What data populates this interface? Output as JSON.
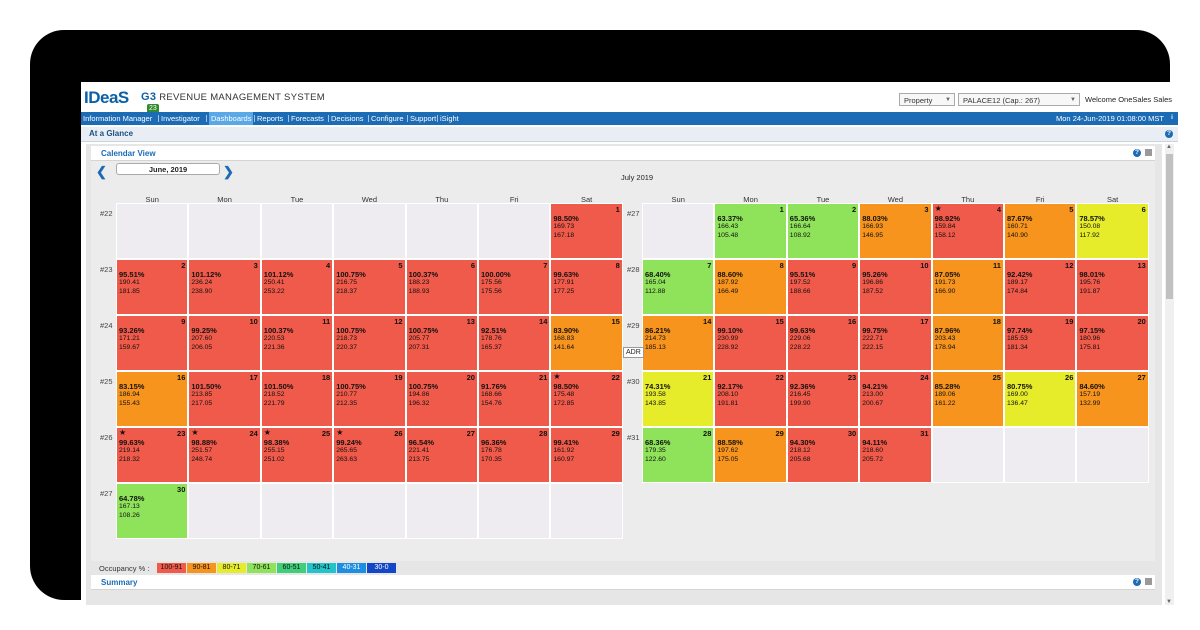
{
  "app": {
    "logo": "IDeaS",
    "product_short": "G3",
    "product_name": "REVENUE MANAGEMENT SYSTEM",
    "badge": "23",
    "property_select": "Property",
    "property_value": "PALACE12 (Cap.: 267)",
    "welcome": "Welcome OneSales Sales"
  },
  "nav": {
    "items": [
      "Information Manager",
      "Investigator",
      "Dashboards",
      "Reports",
      "Forecasts",
      "Decisions",
      "Configure",
      "Support",
      "iSight"
    ],
    "active": "Dashboards",
    "datetime": "Mon 24-Jun-2019 01:08:00 MST"
  },
  "page": {
    "section": "At a Glance",
    "panel_title": "Calendar View",
    "summary_title": "Summary",
    "help": "?"
  },
  "calendar": {
    "prev_arrow": "❮",
    "next_arrow": "❯",
    "tooltip": "ADR",
    "dow": [
      "Sun",
      "Mon",
      "Tue",
      "Wed",
      "Thu",
      "Fri",
      "Sat"
    ],
    "left": {
      "title": "June, 2019",
      "weeks": [
        "#22",
        "#23",
        "#24",
        "#25",
        "#26",
        "#27"
      ],
      "start_offset": 6,
      "days": [
        {
          "d": "1",
          "o": "98.50%",
          "v1": "169.73",
          "v2": "167.18",
          "c": "#f05a4a"
        },
        {
          "d": "2",
          "o": "95.51%",
          "v1": "190.41",
          "v2": "181.85",
          "c": "#f05a4a"
        },
        {
          "d": "3",
          "o": "101.12%",
          "v1": "236.24",
          "v2": "238.90",
          "c": "#f05a4a"
        },
        {
          "d": "4",
          "o": "101.12%",
          "v1": "250.41",
          "v2": "253.22",
          "c": "#f05a4a"
        },
        {
          "d": "5",
          "o": "100.75%",
          "v1": "216.75",
          "v2": "218.37",
          "c": "#f05a4a"
        },
        {
          "d": "6",
          "o": "100.37%",
          "v1": "188.23",
          "v2": "188.93",
          "c": "#f05a4a"
        },
        {
          "d": "7",
          "o": "100.00%",
          "v1": "175.56",
          "v2": "175.56",
          "c": "#f05a4a"
        },
        {
          "d": "8",
          "o": "99.63%",
          "v1": "177.91",
          "v2": "177.25",
          "c": "#f05a4a"
        },
        {
          "d": "9",
          "o": "93.26%",
          "v1": "171.21",
          "v2": "159.67",
          "c": "#f05a4a"
        },
        {
          "d": "10",
          "o": "99.25%",
          "v1": "207.60",
          "v2": "206.05",
          "c": "#f05a4a"
        },
        {
          "d": "11",
          "o": "100.37%",
          "v1": "220.53",
          "v2": "221.36",
          "c": "#f05a4a"
        },
        {
          "d": "12",
          "o": "100.75%",
          "v1": "218.73",
          "v2": "220.37",
          "c": "#f05a4a"
        },
        {
          "d": "13",
          "o": "100.75%",
          "v1": "205.77",
          "v2": "207.31",
          "c": "#f05a4a"
        },
        {
          "d": "14",
          "o": "92.51%",
          "v1": "178.76",
          "v2": "165.37",
          "c": "#f05a4a"
        },
        {
          "d": "15",
          "o": "83.90%",
          "v1": "168.83",
          "v2": "141.64",
          "c": "#f7941d"
        },
        {
          "d": "16",
          "o": "83.15%",
          "v1": "186.94",
          "v2": "155.43",
          "c": "#f7941d"
        },
        {
          "d": "17",
          "o": "101.50%",
          "v1": "213.85",
          "v2": "217.05",
          "c": "#f05a4a"
        },
        {
          "d": "18",
          "o": "101.50%",
          "v1": "218.52",
          "v2": "221.79",
          "c": "#f05a4a"
        },
        {
          "d": "19",
          "o": "100.75%",
          "v1": "210.77",
          "v2": "212.35",
          "c": "#f05a4a"
        },
        {
          "d": "20",
          "o": "100.75%",
          "v1": "194.86",
          "v2": "196.32",
          "c": "#f05a4a"
        },
        {
          "d": "21",
          "o": "91.76%",
          "v1": "168.66",
          "v2": "154.76",
          "c": "#f05a4a"
        },
        {
          "d": "22",
          "o": "98.50%",
          "v1": "175.48",
          "v2": "172.85",
          "c": "#f05a4a",
          "star": true
        },
        {
          "d": "23",
          "o": "99.63%",
          "v1": "219.14",
          "v2": "218.32",
          "c": "#f05a4a",
          "star": true
        },
        {
          "d": "24",
          "o": "98.88%",
          "v1": "251.57",
          "v2": "248.74",
          "c": "#f05a4a",
          "star": true
        },
        {
          "d": "25",
          "o": "98.38%",
          "v1": "255.15",
          "v2": "251.02",
          "c": "#f05a4a",
          "star": true
        },
        {
          "d": "26",
          "o": "99.24%",
          "v1": "265.65",
          "v2": "263.63",
          "c": "#f05a4a",
          "star": true
        },
        {
          "d": "27",
          "o": "96.54%",
          "v1": "221.41",
          "v2": "213.75",
          "c": "#f05a4a"
        },
        {
          "d": "28",
          "o": "96.36%",
          "v1": "176.78",
          "v2": "170.35",
          "c": "#f05a4a"
        },
        {
          "d": "29",
          "o": "99.41%",
          "v1": "161.92",
          "v2": "160.97",
          "c": "#f05a4a"
        },
        {
          "d": "30",
          "o": "64.78%",
          "v1": "167.13",
          "v2": "108.26",
          "c": "#8fe35a"
        }
      ]
    },
    "right": {
      "title": "July 2019",
      "weeks": [
        "#27",
        "#28",
        "#29",
        "#30",
        "#31"
      ],
      "start_offset": 1,
      "days": [
        {
          "d": "1",
          "o": "63.37%",
          "v1": "166.43",
          "v2": "105.48",
          "c": "#8fe35a"
        },
        {
          "d": "2",
          "o": "65.36%",
          "v1": "166.64",
          "v2": "108.92",
          "c": "#8fe35a"
        },
        {
          "d": "3",
          "o": "88.03%",
          "v1": "166.93",
          "v2": "146.95",
          "c": "#f7941d"
        },
        {
          "d": "4",
          "o": "98.92%",
          "v1": "159.84",
          "v2": "158.12",
          "c": "#f05a4a",
          "star": true
        },
        {
          "d": "5",
          "o": "87.67%",
          "v1": "160.71",
          "v2": "140.90",
          "c": "#f7941d"
        },
        {
          "d": "6",
          "o": "78.57%",
          "v1": "150.08",
          "v2": "117.92",
          "c": "#e6ec2a"
        },
        {
          "d": "7",
          "o": "68.40%",
          "v1": "165.04",
          "v2": "112.88",
          "c": "#8fe35a"
        },
        {
          "d": "8",
          "o": "88.60%",
          "v1": "187.92",
          "v2": "166.49",
          "c": "#f7941d"
        },
        {
          "d": "9",
          "o": "95.51%",
          "v1": "197.52",
          "v2": "188.66",
          "c": "#f05a4a"
        },
        {
          "d": "10",
          "o": "95.26%",
          "v1": "196.86",
          "v2": "187.52",
          "c": "#f05a4a"
        },
        {
          "d": "11",
          "o": "87.05%",
          "v1": "191.73",
          "v2": "166.90",
          "c": "#f7941d"
        },
        {
          "d": "12",
          "o": "92.42%",
          "v1": "189.17",
          "v2": "174.84",
          "c": "#f05a4a"
        },
        {
          "d": "13",
          "o": "98.01%",
          "v1": "195.76",
          "v2": "191.87",
          "c": "#f05a4a"
        },
        {
          "d": "14",
          "o": "86.21%",
          "v1": "214.73",
          "v2": "185.13",
          "c": "#f7941d"
        },
        {
          "d": "15",
          "o": "99.10%",
          "v1": "230.99",
          "v2": "228.92",
          "c": "#f05a4a"
        },
        {
          "d": "16",
          "o": "99.63%",
          "v1": "229.06",
          "v2": "228.22",
          "c": "#f05a4a"
        },
        {
          "d": "17",
          "o": "99.75%",
          "v1": "222.71",
          "v2": "222.15",
          "c": "#f05a4a"
        },
        {
          "d": "18",
          "o": "87.96%",
          "v1": "203.43",
          "v2": "178.94",
          "c": "#f7941d"
        },
        {
          "d": "19",
          "o": "97.74%",
          "v1": "185.53",
          "v2": "181.34",
          "c": "#f05a4a"
        },
        {
          "d": "20",
          "o": "97.15%",
          "v1": "180.96",
          "v2": "175.81",
          "c": "#f05a4a"
        },
        {
          "d": "21",
          "o": "74.31%",
          "v1": "193.58",
          "v2": "143.85",
          "c": "#e6ec2a"
        },
        {
          "d": "22",
          "o": "92.17%",
          "v1": "208.10",
          "v2": "191.81",
          "c": "#f05a4a"
        },
        {
          "d": "23",
          "o": "92.36%",
          "v1": "216.45",
          "v2": "199.90",
          "c": "#f05a4a"
        },
        {
          "d": "24",
          "o": "94.21%",
          "v1": "213.00",
          "v2": "200.67",
          "c": "#f05a4a"
        },
        {
          "d": "25",
          "o": "85.28%",
          "v1": "189.06",
          "v2": "161.22",
          "c": "#f7941d"
        },
        {
          "d": "26",
          "o": "80.75%",
          "v1": "169.00",
          "v2": "136.47",
          "c": "#e6ec2a"
        },
        {
          "d": "27",
          "o": "84.60%",
          "v1": "157.19",
          "v2": "132.99",
          "c": "#f7941d"
        },
        {
          "d": "28",
          "o": "68.36%",
          "v1": "179.35",
          "v2": "122.60",
          "c": "#8fe35a"
        },
        {
          "d": "29",
          "o": "88.58%",
          "v1": "197.62",
          "v2": "175.05",
          "c": "#f7941d"
        },
        {
          "d": "30",
          "o": "94.30%",
          "v1": "218.12",
          "v2": "205.68",
          "c": "#f05a4a"
        },
        {
          "d": "31",
          "o": "94.11%",
          "v1": "218.60",
          "v2": "205.72",
          "c": "#f05a4a"
        }
      ]
    },
    "legend_label": "Occupancy % :",
    "legend": [
      {
        "label": "100-91",
        "c": "#f05a4a"
      },
      {
        "label": "90-81",
        "c": "#f7941d"
      },
      {
        "label": "80-71",
        "c": "#e6ec2a"
      },
      {
        "label": "70-61",
        "c": "#8fe35a"
      },
      {
        "label": "60-51",
        "c": "#3fcf7a"
      },
      {
        "label": "50-41",
        "c": "#22c4c9"
      },
      {
        "label": "40-31",
        "c": "#1e8fe0"
      },
      {
        "label": "30-0",
        "c": "#1446c8"
      }
    ]
  }
}
